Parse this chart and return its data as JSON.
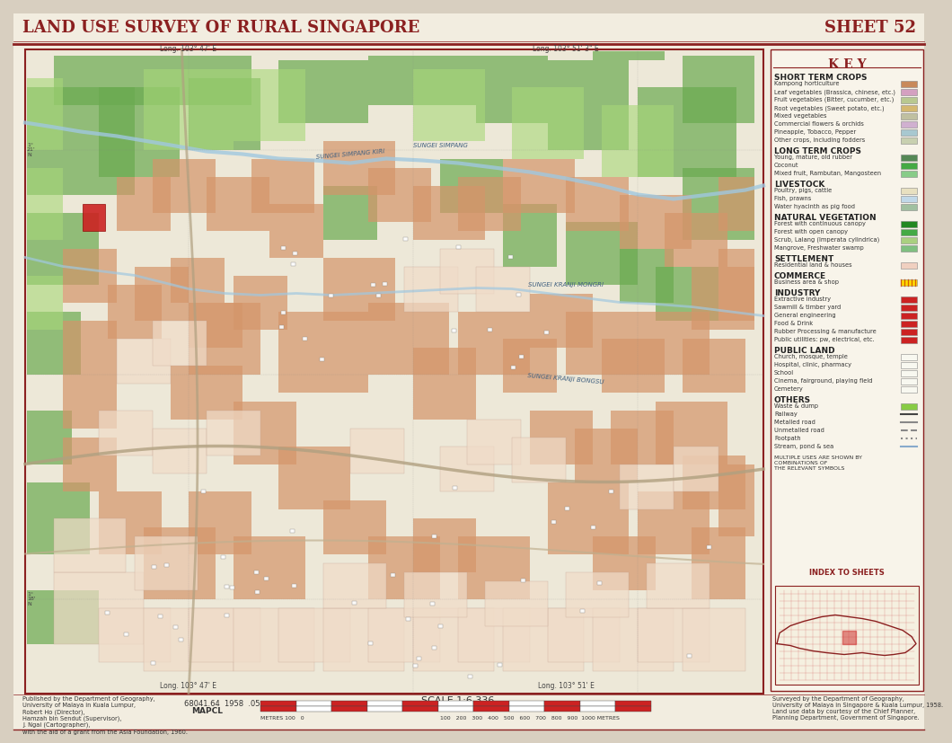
{
  "title_left": "LAND USE SURVEY OF RURAL SINGAPORE",
  "title_right": "SHEET 52",
  "title_color": "#8B2020",
  "bg_color": "#f5f0e8",
  "page_bg": "#e8e0d0",
  "map_bg": "#f0ece0",
  "border_color": "#8B2020",
  "key_title": "K E Y",
  "bottom_left_text": "Published by the Department of Geography,\nUniversity of Malaya in Kuala Lumpur,\nRobert Ho (Director),\nHamzah bin Sendut (Supervisor),\nJ. Ngai (Cartographer),\nwith the aid of a grant from the Asia Foundation, 1960.",
  "bottom_center_code": "68041.64  1958  .05",
  "bottom_center_sub": "MAPCL",
  "scale_text": "SCALE 1:6,336",
  "bottom_right_text": "Surveyed by the Department of Geography,\nUniversity of Malaya in Singapore & Kuala Lumpur, 1958.\nLand use data by courtesy of the Chief Planner,\nPlanning Department, Government of Singapore.",
  "index_title": "INDEX TO SHEETS",
  "map_frame_color": "#8B2020",
  "short_term_labels": [
    "Kampong horticulture",
    "Leaf vegetables (Brassica, chinese, etc.)",
    "Fruit vegetables (Bitter, cucumber, etc.)",
    "Root vegetables (Sweet potato, etc.)",
    "Mixed vegetables",
    "Commercial flowers & orchids",
    "Pineapple, Tobacco, Pepper",
    "Other crops, including fodders"
  ],
  "short_term_colors": [
    "#c8895a",
    "#d4a0c0",
    "#b8c890",
    "#d4b870",
    "#c0c0a0",
    "#d0b0d0",
    "#a8c8d0",
    "#c8d0b0"
  ],
  "long_term_labels": [
    "Young, mature, old rubber",
    "Coconut",
    "Mixed fruit, Rambutan, Mangosteen"
  ],
  "long_term_colors": [
    "#558855",
    "#44aa44",
    "#88cc88"
  ],
  "livestock_labels": [
    "Poultry, pigs, cattle",
    "Fish, prawns",
    "Water hyacinth as pig food"
  ],
  "livestock_colors": [
    "#e8e0c0",
    "#c0d8e8",
    "#a0c0a0"
  ],
  "nat_veg_labels": [
    "Forest with continuous canopy",
    "Forest with open canopy",
    "Scrub, Lalang (Imperata cylindrica)",
    "Mangrove, Freshwater swamp"
  ],
  "nat_veg_colors": [
    "#228822",
    "#44aa44",
    "#aad080",
    "#80c080"
  ],
  "industry_labels": [
    "Extractive industry",
    "Sawmill & timber yard",
    "General engineering",
    "Food & Drink",
    "Rubber Processing & manufacture",
    "Public utilities: pw, electrical, etc."
  ],
  "industry_color": "#cc2222",
  "pub_land_labels": [
    "Church, mosque, temple",
    "Hospital, clinic, pharmacy",
    "School",
    "Cinema, fairground, playing field",
    "Cemetery"
  ],
  "others_line_labels": [
    "Railway",
    "Metalled road",
    "Unmetalled road",
    "Footpath",
    "Stream, pond & sea"
  ],
  "others_line_styles": [
    "-",
    "-",
    "--",
    ":",
    "-"
  ],
  "others_line_colors": [
    "#444444",
    "#888888",
    "#888888",
    "#888888",
    "#88aacc"
  ]
}
